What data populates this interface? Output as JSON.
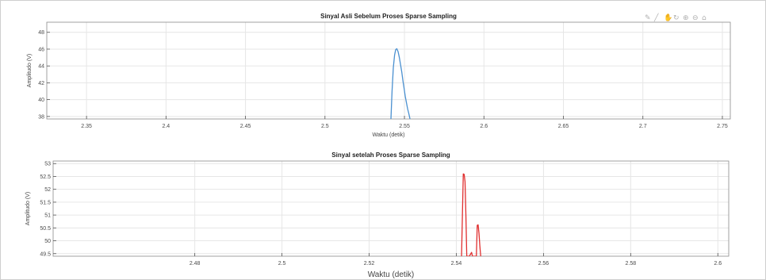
{
  "toolbar": {
    "icons": [
      "brush-icon",
      "pen-icon",
      "pan-icon",
      "rotate-icon",
      "zoom-in-icon",
      "zoom-out-icon",
      "home-icon"
    ]
  },
  "chart_data": [
    {
      "type": "line",
      "title": "Sinyal Asli Sebelum Proses Sparse Sampling",
      "xlabel": "Waktu (detik)",
      "ylabel": "Amplitudo (V)",
      "xlim": [
        2.325,
        2.755
      ],
      "ylim": [
        37.7,
        49.2
      ],
      "xticks": [
        2.35,
        2.4,
        2.45,
        2.5,
        2.55,
        2.6,
        2.65,
        2.7,
        2.75
      ],
      "xtick_labels": [
        "2.35",
        "2.4",
        "2.45",
        "2.5",
        "2.55",
        "2.6",
        "2.65",
        "2.7",
        "2.75"
      ],
      "yticks": [
        38,
        40,
        42,
        44,
        46,
        48
      ],
      "ytick_labels": [
        "38",
        "40",
        "42",
        "44",
        "46",
        "48"
      ],
      "grid": true,
      "color": "#4a90d0",
      "series": [
        {
          "x": [
            2.5415,
            2.5422,
            2.543,
            2.5438,
            2.5445,
            2.5452,
            2.546,
            2.5468,
            2.5475,
            2.5483,
            2.549,
            2.5498,
            2.5505,
            2.5513,
            2.552,
            2.5528,
            2.5535
          ],
          "y": [
            37.7,
            41.0,
            43.8,
            45.3,
            45.95,
            46.05,
            45.7,
            45.0,
            44.2,
            43.3,
            42.3,
            41.3,
            40.4,
            39.6,
            38.9,
            38.3,
            37.7
          ]
        }
      ]
    },
    {
      "type": "line",
      "title": "Sinyal setelah Proses Sparse Sampling",
      "xlabel": "Waktu (detik)",
      "ylabel": "Amplitudo (V)",
      "xlim": [
        2.4475,
        2.6025
      ],
      "ylim": [
        49.4,
        53.1
      ],
      "xticks": [
        2.48,
        2.5,
        2.52,
        2.54,
        2.56,
        2.58,
        2.6
      ],
      "xtick_labels": [
        "2.48",
        "2.5",
        "2.52",
        "2.54",
        "2.56",
        "2.58",
        "2.6"
      ],
      "yticks": [
        49.5,
        50,
        50.5,
        51,
        51.5,
        52,
        52.5,
        53
      ],
      "ytick_labels": [
        "49.5",
        "50",
        "50.5",
        "51",
        "51.5",
        "52",
        "52.5",
        "53"
      ],
      "grid": true,
      "color": "#e03030",
      "series": [
        {
          "x": [
            2.5412,
            2.5416,
            2.5418,
            2.542,
            2.5422,
            2.5424,
            2.5427,
            2.543,
            2.5435,
            2.5437,
            2.544,
            2.5442,
            2.5446,
            2.5448,
            2.545,
            2.5452,
            2.5454,
            2.5456
          ],
          "y": [
            49.4,
            52.6,
            52.58,
            52.3,
            51.0,
            49.4,
            49.4,
            49.4,
            49.55,
            49.4,
            49.4,
            49.4,
            49.4,
            50.6,
            50.62,
            50.3,
            49.8,
            49.4
          ]
        }
      ]
    }
  ]
}
